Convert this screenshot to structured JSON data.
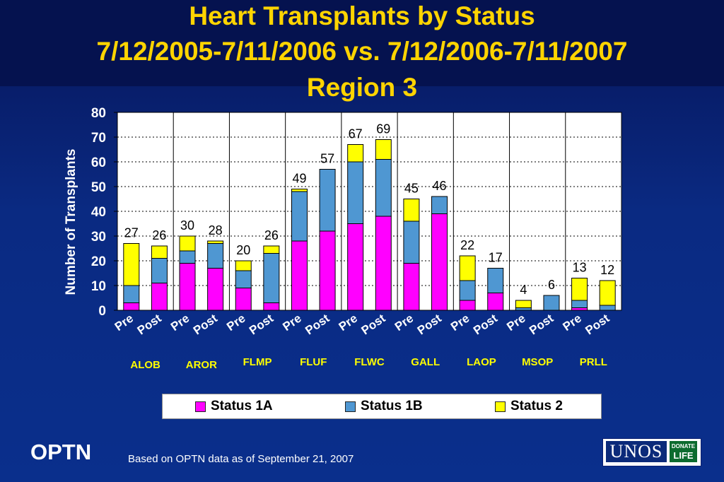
{
  "title_lines": [
    "Heart Transplants by Status",
    "7/12/2005-7/11/2006 vs. 7/12/2006-7/11/2007",
    "Region 3"
  ],
  "footer": {
    "brand": "OPTN",
    "note": "Based on OPTN data as of  September 21, 2007",
    "logo_text": "UNOS",
    "logo_badge_line1": "DONATE",
    "logo_badge_line2": "LIFE"
  },
  "colors": {
    "status_1a": "#ff00ff",
    "status_1b": "#4f97d2",
    "status_2": "#ffff00",
    "title": "#ffd400",
    "center_labels": "#ffff00",
    "axis_text": "#ffffff",
    "plot_background": "#ffffff"
  },
  "chart_data": {
    "type": "bar",
    "stacked": true,
    "title": "Heart Transplants by Status",
    "ylabel": "Number of Transplants",
    "xlabel": "",
    "ylim": [
      0,
      80
    ],
    "yticks": [
      0,
      10,
      20,
      30,
      40,
      50,
      60,
      70,
      80
    ],
    "grid": "horizontal dotted",
    "legend_position": "bottom",
    "groups": [
      "ALOB",
      "AROR",
      "FLMP",
      "FLUF",
      "FLWC",
      "GALL",
      "LAOP",
      "MSOP",
      "PRLL"
    ],
    "periods": [
      "Pre",
      "Post"
    ],
    "categories": [
      "ALOB Pre",
      "ALOB Post",
      "AROR Pre",
      "AROR Post",
      "FLMP Pre",
      "FLMP Post",
      "FLUF Pre",
      "FLUF Post",
      "FLWC Pre",
      "FLWC Post",
      "GALL Pre",
      "GALL Post",
      "LAOP Pre",
      "LAOP Post",
      "MSOP Pre",
      "MSOP Post",
      "PRLL Pre",
      "PRLL Post"
    ],
    "series": [
      {
        "name": "Status 1A",
        "values": [
          3,
          11,
          19,
          17,
          9,
          3,
          28,
          32,
          35,
          38,
          19,
          39,
          4,
          7,
          0,
          0,
          1,
          0
        ]
      },
      {
        "name": "Status 1B",
        "values": [
          7,
          10,
          5,
          10,
          7,
          20,
          20,
          25,
          25,
          23,
          17,
          7,
          8,
          10,
          1,
          6,
          3,
          2
        ]
      },
      {
        "name": "Status 2",
        "values": [
          17,
          5,
          6,
          1,
          4,
          3,
          1,
          0,
          7,
          8,
          9,
          0,
          10,
          0,
          3,
          0,
          9,
          10
        ]
      }
    ],
    "totals": [
      "27",
      "26",
      "30",
      "28",
      "20",
      "26",
      "49",
      "57",
      "67",
      "69",
      "45",
      "46",
      "22",
      "17",
      "4",
      "6",
      "13",
      "12"
    ]
  }
}
